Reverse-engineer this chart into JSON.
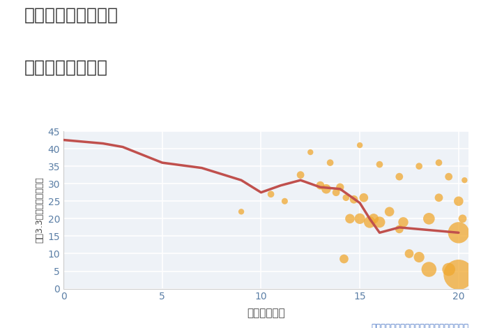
{
  "title_line1": "千葉県船橋市金杉の",
  "title_line2": "駅距離別土地価格",
  "xlabel": "駅距離（分）",
  "ylabel": "坪（3.3㎡）単価（万円）",
  "annotation": "円の大きさは、取引のあった物件面積を示す",
  "background_color": "#ffffff",
  "plot_bg_color": "#eef2f7",
  "grid_color": "#ffffff",
  "line_color": "#c0504d",
  "scatter_color": "#f0a830",
  "xlim": [
    0,
    20.5
  ],
  "ylim": [
    0,
    45
  ],
  "xticks": [
    0,
    5,
    10,
    15,
    20
  ],
  "yticks": [
    0,
    5,
    10,
    15,
    20,
    25,
    30,
    35,
    40,
    45
  ],
  "line_x": [
    0,
    1,
    2,
    3,
    5,
    7,
    9,
    10,
    11,
    12,
    13,
    14,
    14.5,
    15,
    15.5,
    16,
    17,
    18,
    19,
    20
  ],
  "line_y": [
    42.5,
    42.0,
    41.5,
    40.5,
    36.0,
    34.5,
    31.0,
    27.5,
    29.5,
    31.0,
    29.0,
    28.5,
    26.5,
    24.5,
    20.0,
    16.0,
    17.5,
    17.0,
    16.5,
    16.0
  ],
  "scatter_x": [
    9.0,
    10.5,
    11.2,
    12.0,
    12.5,
    13.0,
    13.3,
    13.5,
    13.8,
    14.0,
    14.2,
    14.3,
    14.5,
    14.7,
    15.0,
    15.0,
    15.2,
    15.5,
    15.7,
    16.0,
    16.0,
    16.5,
    17.0,
    17.0,
    17.2,
    17.5,
    18.0,
    18.0,
    18.5,
    18.5,
    19.0,
    19.0,
    19.5,
    19.5,
    20.0,
    20.0,
    20.0,
    20.2,
    20.3
  ],
  "scatter_y": [
    22.0,
    27.0,
    25.0,
    32.5,
    39.0,
    29.5,
    28.5,
    36.0,
    27.5,
    29.0,
    8.5,
    26.0,
    20.0,
    25.5,
    41.0,
    20.0,
    26.0,
    19.0,
    20.0,
    35.5,
    19.0,
    22.0,
    32.0,
    17.0,
    19.0,
    10.0,
    9.0,
    35.0,
    20.0,
    5.5,
    26.0,
    36.0,
    32.0,
    5.5,
    25.0,
    16.0,
    4.0,
    20.0,
    31.0
  ],
  "scatter_sizes": [
    30,
    40,
    35,
    50,
    30,
    60,
    80,
    40,
    50,
    55,
    70,
    40,
    80,
    60,
    30,
    100,
    70,
    120,
    90,
    40,
    110,
    80,
    50,
    60,
    90,
    70,
    100,
    40,
    120,
    200,
    60,
    40,
    50,
    150,
    80,
    400,
    800,
    60,
    30
  ]
}
